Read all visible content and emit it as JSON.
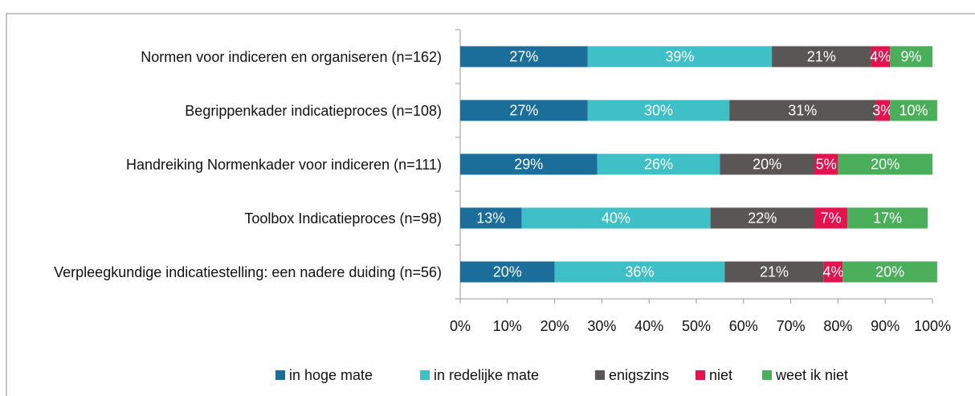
{
  "chart_data": {
    "type": "stacked-bar-horizontal",
    "categories": [
      "Normen voor indiceren en organiseren (n=162)",
      "Begrippenkader indicatieproces (n=108)",
      "Handreiking Normenkader voor indiceren (n=111)",
      "Toolbox Indicatieproces (n=98)",
      "Verpleegkundige indicatiestelling: een nadere duiding (n=56)"
    ],
    "series": [
      {
        "name": "in hoge mate",
        "color": "#1a6e99",
        "values": [
          27,
          27,
          29,
          13,
          20
        ],
        "value_labels": [
          "27%",
          "27%",
          "29%",
          "13%",
          "20%"
        ]
      },
      {
        "name": "in redelijke mate",
        "color": "#3fbfc6",
        "values": [
          39,
          30,
          26,
          40,
          36
        ],
        "value_labels": [
          "39%",
          "30%",
          "26%",
          "40%",
          "36%"
        ]
      },
      {
        "name": "enigszins",
        "color": "#5b5656",
        "values": [
          21,
          31,
          20,
          22,
          21
        ],
        "value_labels": [
          "21%",
          "31%",
          "20%",
          "22%",
          "21%"
        ]
      },
      {
        "name": "niet",
        "color": "#e3134f",
        "values": [
          4,
          3,
          5,
          7,
          4
        ],
        "value_labels": [
          "4%",
          "3%",
          "5%",
          "7%",
          "4%"
        ]
      },
      {
        "name": "weet ik niet",
        "color": "#4aae5a",
        "values": [
          9,
          10,
          20,
          17,
          20
        ],
        "value_labels": [
          "9%",
          "10%",
          "20%",
          "17%",
          "20%"
        ]
      }
    ],
    "xlim": [
      0,
      100
    ],
    "xticks": [
      {
        "value": 0,
        "label": "0%"
      },
      {
        "value": 10,
        "label": "10%"
      },
      {
        "value": 20,
        "label": "20%"
      },
      {
        "value": 30,
        "label": "30%"
      },
      {
        "value": 40,
        "label": "40%"
      },
      {
        "value": 50,
        "label": "50%"
      },
      {
        "value": 60,
        "label": "60%"
      },
      {
        "value": 70,
        "label": "70%"
      },
      {
        "value": 80,
        "label": "80%"
      },
      {
        "value": 90,
        "label": "90%"
      },
      {
        "value": 100,
        "label": "100%"
      }
    ],
    "legend": "bottom"
  }
}
